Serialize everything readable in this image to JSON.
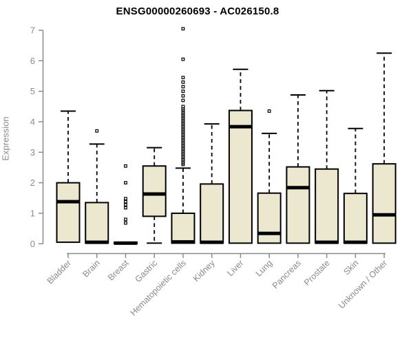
{
  "page": {
    "background": "#ffffff"
  },
  "chart_data": {
    "type": "boxplot",
    "title": "ENSG00000260693 - AC026150.8",
    "xlabel": "",
    "ylabel": "Expression",
    "ylim": [
      0,
      7
    ],
    "yticks": [
      0,
      1,
      2,
      3,
      4,
      5,
      6,
      7
    ],
    "grid": false,
    "legend": null,
    "categories": [
      "Bladder",
      "Brain",
      "Breast",
      "Gastric",
      "Hematopoietic cells",
      "Kidney",
      "Liver",
      "Lung",
      "Pancreas",
      "Prostate",
      "Skin",
      "Unknown / Other"
    ],
    "series": [
      {
        "category": "Bladder",
        "min": 0.05,
        "q1": 0.05,
        "median": 1.38,
        "q3": 2.0,
        "max": 4.35,
        "outliers": []
      },
      {
        "category": "Brain",
        "min": 0.02,
        "q1": 0.02,
        "median": 0.05,
        "q3": 1.35,
        "max": 3.27,
        "outliers": [
          3.7
        ]
      },
      {
        "category": "Breast",
        "min": 0.0,
        "q1": 0.0,
        "median": 0.02,
        "q3": 0.05,
        "max": 0.05,
        "outliers": [
          0.68,
          0.8,
          1.18,
          1.28,
          1.38,
          1.48,
          2.0,
          2.55
        ]
      },
      {
        "category": "Gastric",
        "min": 0.02,
        "q1": 0.9,
        "median": 1.63,
        "q3": 2.55,
        "max": 3.15,
        "outliers": []
      },
      {
        "category": "Hematopoietic cells",
        "min": 0.02,
        "q1": 0.02,
        "median": 0.06,
        "q3": 1.0,
        "max": 2.48,
        "outliers": [
          2.6,
          2.65,
          2.69,
          2.74,
          2.78,
          2.83,
          2.87,
          2.92,
          2.96,
          3.01,
          3.05,
          3.1,
          3.14,
          3.19,
          3.23,
          3.28,
          3.32,
          3.37,
          3.41,
          3.46,
          3.5,
          3.55,
          3.59,
          3.64,
          3.68,
          3.73,
          3.77,
          3.82,
          3.86,
          3.91,
          3.95,
          4.0,
          4.04,
          4.09,
          4.13,
          4.18,
          4.22,
          4.27,
          4.31,
          4.36,
          4.4,
          4.45,
          4.5,
          4.7,
          4.85,
          5.0,
          5.15,
          5.3,
          5.45,
          6.05,
          7.05
        ]
      },
      {
        "category": "Kidney",
        "min": 0.02,
        "q1": 0.02,
        "median": 0.05,
        "q3": 1.96,
        "max": 3.93,
        "outliers": []
      },
      {
        "category": "Liver",
        "min": 0.02,
        "q1": 0.02,
        "median": 3.84,
        "q3": 4.37,
        "max": 5.72,
        "outliers": []
      },
      {
        "category": "Lung",
        "min": 0.02,
        "q1": 0.02,
        "median": 0.34,
        "q3": 1.66,
        "max": 3.62,
        "outliers": [
          4.35
        ]
      },
      {
        "category": "Pancreas",
        "min": 0.02,
        "q1": 0.02,
        "median": 1.84,
        "q3": 2.52,
        "max": 4.88,
        "outliers": []
      },
      {
        "category": "Prostate",
        "min": 0.02,
        "q1": 0.02,
        "median": 0.05,
        "q3": 2.45,
        "max": 5.02,
        "outliers": []
      },
      {
        "category": "Skin",
        "min": 0.02,
        "q1": 0.02,
        "median": 0.05,
        "q3": 1.65,
        "max": 3.78,
        "outliers": []
      },
      {
        "category": "Unknown / Other",
        "min": 0.02,
        "q1": 0.02,
        "median": 0.95,
        "q3": 2.62,
        "max": 6.25,
        "outliers": []
      }
    ],
    "colors": {
      "box_fill": "#ece7cf",
      "box_stroke": "#000000",
      "median": "#000000",
      "whisker": "#000000",
      "outlier_stroke": "#000000",
      "outlier_fill": "#ffffff",
      "axis": "#8a8a8a",
      "tick_label": "#8a8a8a",
      "title": "#000000",
      "background": "#ffffff"
    }
  }
}
